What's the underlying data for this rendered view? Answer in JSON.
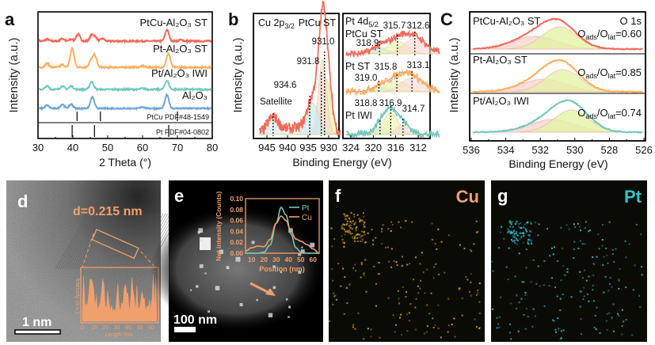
{
  "colors": {
    "red": "#f4695a",
    "orange": "#fdae5f",
    "teal": "#72c9bb",
    "blue": "#6fa6d4",
    "accent": "#f0a06c",
    "cu_map": "#d9a21b",
    "pt_map": "#2fc4cf"
  },
  "panels": {
    "a": "a",
    "b": "b",
    "c": "C",
    "d": "d",
    "e": "e",
    "f": "f",
    "g": "g"
  },
  "chart_data": [
    {
      "id": "a",
      "type": "line",
      "xlabel": "2 Theta (°)",
      "ylabel": "Intensity (a.u.)",
      "xlim": [
        30,
        80
      ],
      "xticks": [
        "30",
        "40",
        "50",
        "60",
        "70",
        "80"
      ],
      "series": [
        {
          "name": "PtCu-Al₂O₃ ST",
          "color": "red",
          "peaks": [
            [
              32.6,
              0.15
            ],
            [
              37,
              0.2
            ],
            [
              39.5,
              0.15
            ],
            [
              41.5,
              0.55
            ],
            [
              45.4,
              0.45
            ],
            [
              46.4,
              0.3
            ],
            [
              48.5,
              0.2
            ],
            [
              67,
              0.9
            ],
            [
              71,
              0.1
            ]
          ]
        },
        {
          "name": "Pt-Al₂O₃ ST",
          "color": "orange",
          "peaks": [
            [
              32.6,
              0.3
            ],
            [
              37,
              0.2
            ],
            [
              39.8,
              1.5
            ],
            [
              45.2,
              0.5
            ],
            [
              46.3,
              0.9
            ],
            [
              60,
              0.1
            ],
            [
              67.4,
              1.1
            ]
          ]
        },
        {
          "name": "Pt/Al₂O₃ IWI",
          "color": "teal",
          "peaks": [
            [
              32.6,
              0.3
            ],
            [
              37,
              0.3
            ],
            [
              39.5,
              0.3
            ],
            [
              45.4,
              0.7
            ],
            [
              60,
              0.1
            ],
            [
              67,
              0.8
            ]
          ]
        },
        {
          "name": "Al₂O₃",
          "color": "blue",
          "peaks": [
            [
              32.6,
              0.3
            ],
            [
              37,
              0.4
            ],
            [
              39.5,
              0.4
            ],
            [
              45.6,
              1.1
            ],
            [
              60,
              0.15
            ],
            [
              67,
              1.3
            ]
          ]
        }
      ],
      "references": [
        {
          "name": "PtCu PDF#48-1549",
          "lines": [
            41.2,
            47.9,
            70.0
          ]
        },
        {
          "name": "Pt PDF#04-0802",
          "lines": [
            39.8,
            46.2,
            67.5
          ]
        }
      ]
    },
    {
      "id": "b-cu",
      "type": "line",
      "title": [
        "Cu 2p",
        "3/2"
      ],
      "sample": "PtCu ST",
      "xlim": [
        947,
        927
      ],
      "xticks": [
        "945",
        "940",
        "935",
        "930"
      ],
      "xlabel": "Binding Energy (eV)",
      "ylabel": "Intensity (a.u.)",
      "peak_labels": [
        "931.0",
        "931.8",
        "934.6",
        "Satellite"
      ],
      "components": [
        [
          931.0,
          1.0
        ],
        [
          931.8,
          1.0
        ],
        [
          934.6,
          0.55
        ],
        [
          943.5,
          0.25
        ]
      ]
    },
    {
      "id": "b-pt",
      "type": "line",
      "title": [
        "Pt 4d",
        "5/2"
      ],
      "xlim": [
        325,
        308
      ],
      "xticks": [
        "324",
        "320",
        "316",
        "312"
      ],
      "series": [
        {
          "name": "PtCu ST",
          "color": "red",
          "peaks": [
            "318.9",
            "315.7",
            "312.6"
          ]
        },
        {
          "name": "Pt ST",
          "color": "orange",
          "peaks": [
            "319.0",
            "315.8",
            "313.1"
          ]
        },
        {
          "name": "Pt IWI",
          "color": "teal",
          "peaks": [
            "318.8",
            "316.9",
            "314.7"
          ]
        }
      ]
    },
    {
      "id": "c",
      "type": "line",
      "title": "O 1s",
      "xlabel": "Binding Energy (eV)",
      "ylabel": "Intensity (a.u.)",
      "xlim": [
        536,
        526
      ],
      "xticks": [
        "536",
        "534",
        "532",
        "530",
        "528",
        "526"
      ],
      "ratio_label": [
        "O",
        "ads",
        "/O",
        "lat"
      ],
      "series": [
        {
          "name": "PtCu-Al₂O₃ ST",
          "color": "red",
          "ratio": "=0.60",
          "o_ads": 532.3,
          "o_lat": 530.9
        },
        {
          "name": "Pt-Al₂O₃ ST",
          "color": "orange",
          "ratio": "=0.85",
          "o_ads": 531.8,
          "o_lat": 530.7
        },
        {
          "name": "Pt/Al₂O₃ IWI",
          "color": "teal",
          "ratio": "=0.74",
          "o_ads": 531.3,
          "o_lat": 530.2
        }
      ]
    },
    {
      "id": "e-inset",
      "type": "line",
      "xlabel": "Position (nm)",
      "ylabel": "Net intensity (Counts)",
      "xlim": [
        5,
        65
      ],
      "ylim": [
        0,
        0.1
      ],
      "xticks": [
        "10",
        "20",
        "30",
        "40",
        "50",
        "60"
      ],
      "yticks": [
        "0.00",
        "0.02",
        "0.04",
        "0.06",
        "0.08",
        "0.10"
      ],
      "series": [
        {
          "name": "Pt",
          "color": "teal",
          "x": [
            5,
            15,
            20,
            25,
            30,
            34,
            38,
            42,
            46,
            50,
            55,
            60,
            65
          ],
          "y": [
            0,
            0,
            0.002,
            0.015,
            0.055,
            0.084,
            0.07,
            0.035,
            0.01,
            0.002,
            0,
            0,
            0
          ]
        },
        {
          "name": "Cu",
          "color": "accent",
          "x": [
            5,
            10,
            15,
            20,
            25,
            30,
            34,
            38,
            42,
            46,
            50,
            55,
            60,
            65
          ],
          "y": [
            0.004,
            0.01,
            0.013,
            0.012,
            0.025,
            0.055,
            0.068,
            0.06,
            0.04,
            0.026,
            0.022,
            0.016,
            0.008,
            0
          ]
        }
      ]
    }
  ],
  "d": {
    "spacing": "d=0.215 nm",
    "scale": "1 nm",
    "inset_ylabel": "Intensity (a.u.)",
    "inset_xlabel": "Length /nm",
    "inset_xticks": [
      "0",
      "10",
      "20",
      "30",
      "40",
      "50",
      "60"
    ]
  },
  "e": {
    "scale": "100 nm"
  },
  "f": {
    "element": "Cu"
  },
  "g": {
    "element": "Pt"
  }
}
